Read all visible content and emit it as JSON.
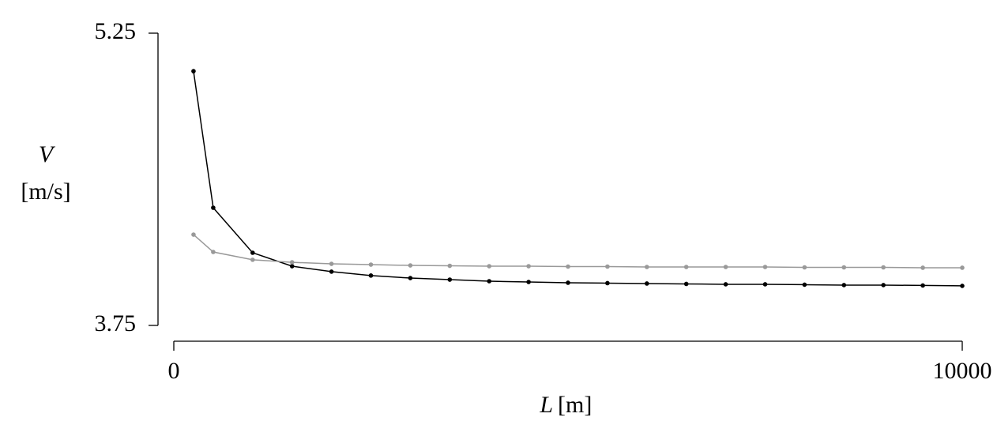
{
  "chart_data": {
    "type": "line",
    "x_label": {
      "symbol": "L",
      "unit": "[m]"
    },
    "y_label": {
      "symbol": "V",
      "unit": "[m/s]"
    },
    "x": [
      250,
      500,
      1000,
      1500,
      2000,
      2500,
      3000,
      3500,
      4000,
      4500,
      5000,
      5500,
      6000,
      6500,
      7000,
      7500,
      8000,
      8500,
      9000,
      9500,
      10000
    ],
    "series": [
      {
        "color": "#000000",
        "values": [
          5.055,
          4.354,
          4.123,
          4.054,
          4.026,
          4.006,
          3.993,
          3.985,
          3.977,
          3.973,
          3.969,
          3.967,
          3.965,
          3.963,
          3.961,
          3.961,
          3.959,
          3.957,
          3.957,
          3.955,
          3.953
        ]
      },
      {
        "color": "#999999",
        "values": [
          4.216,
          4.127,
          4.087,
          4.074,
          4.066,
          4.062,
          4.058,
          4.056,
          4.054,
          4.054,
          4.052,
          4.052,
          4.05,
          4.05,
          4.05,
          4.05,
          4.048,
          4.048,
          4.048,
          4.046,
          4.046
        ]
      }
    ],
    "xlim": [
      0,
      10000
    ],
    "xticks": [
      0,
      10000
    ],
    "ylim": [
      3.75,
      5.25
    ],
    "yticks": [
      3.75,
      5.25
    ]
  }
}
